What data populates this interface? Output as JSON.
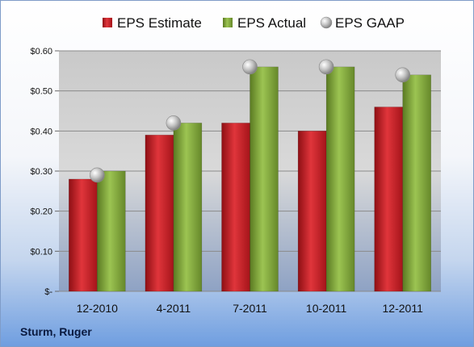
{
  "chart_data": {
    "type": "bar",
    "categories": [
      "12-2010",
      "4-2011",
      "7-2011",
      "10-2011",
      "12-2011"
    ],
    "series": [
      {
        "name": "EPS Estimate",
        "type": "bar",
        "color": "#c8202a",
        "values": [
          0.28,
          0.39,
          0.42,
          0.4,
          0.46
        ]
      },
      {
        "name": "EPS Actual",
        "type": "bar",
        "color": "#7ea43a",
        "values": [
          0.3,
          0.42,
          0.56,
          0.56,
          0.54
        ]
      },
      {
        "name": "EPS GAAP",
        "type": "marker",
        "color": "#b8b8b8",
        "values": [
          0.29,
          0.42,
          0.56,
          0.56,
          0.54
        ]
      }
    ],
    "y_ticks": [
      "$-",
      "$0.10",
      "$0.20",
      "$0.30",
      "$0.40",
      "$0.50",
      "$0.60"
    ],
    "ylim": [
      0,
      0.6
    ],
    "grid": true,
    "legend_position": "top",
    "footer_label": "Sturm, Ruger"
  }
}
